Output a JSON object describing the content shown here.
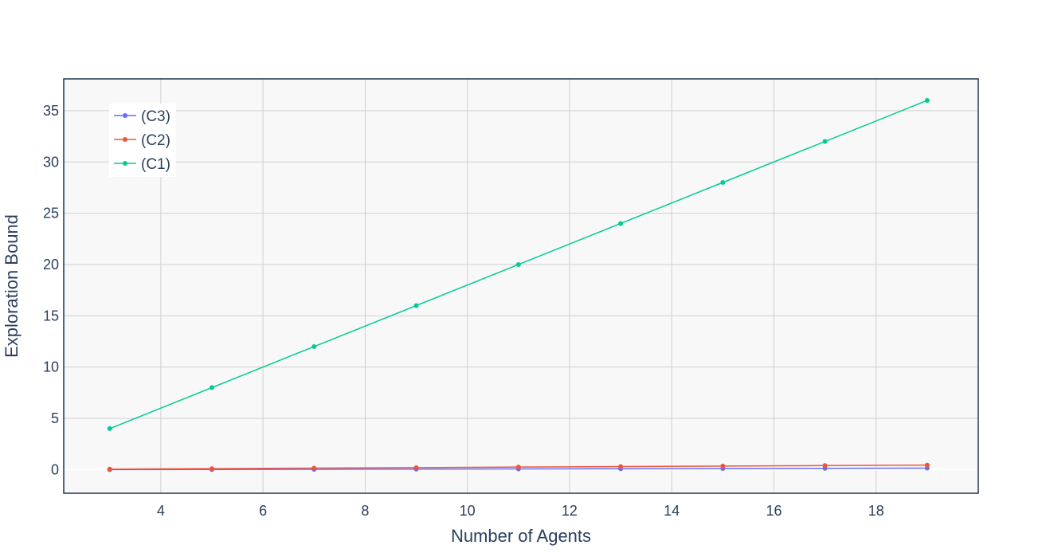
{
  "colors": {
    "plot_bg": "#f8f8f8",
    "grid": "#d0d0d0",
    "zero_line": "#ffffff",
    "frame": "#1f3450",
    "text": "#2a3f5f"
  },
  "chart_data": {
    "type": "line",
    "xlabel": "Number of Agents",
    "ylabel": "Exploration Bound",
    "xlim": [
      2.1,
      20.0
    ],
    "ylim": [
      -2.3,
      38.1
    ],
    "x_ticks": [
      4,
      6,
      8,
      10,
      12,
      14,
      16,
      18
    ],
    "y_ticks": [
      0,
      5,
      10,
      15,
      20,
      25,
      30,
      35
    ],
    "grid": true,
    "legend_position": "top-left",
    "x": [
      3,
      5,
      7,
      9,
      11,
      13,
      15,
      17,
      19
    ],
    "series": [
      {
        "name": "(C3)",
        "color": "#636efa",
        "values": [
          0.0,
          0.01,
          0.03,
          0.05,
          0.07,
          0.09,
          0.11,
          0.13,
          0.15
        ]
      },
      {
        "name": "(C2)",
        "color": "#ef553b",
        "values": [
          0.05,
          0.1,
          0.15,
          0.2,
          0.25,
          0.3,
          0.35,
          0.4,
          0.45
        ]
      },
      {
        "name": "(C1)",
        "color": "#00cc96",
        "values": [
          4,
          8,
          12,
          16,
          20,
          24,
          28,
          32,
          36
        ]
      }
    ]
  }
}
